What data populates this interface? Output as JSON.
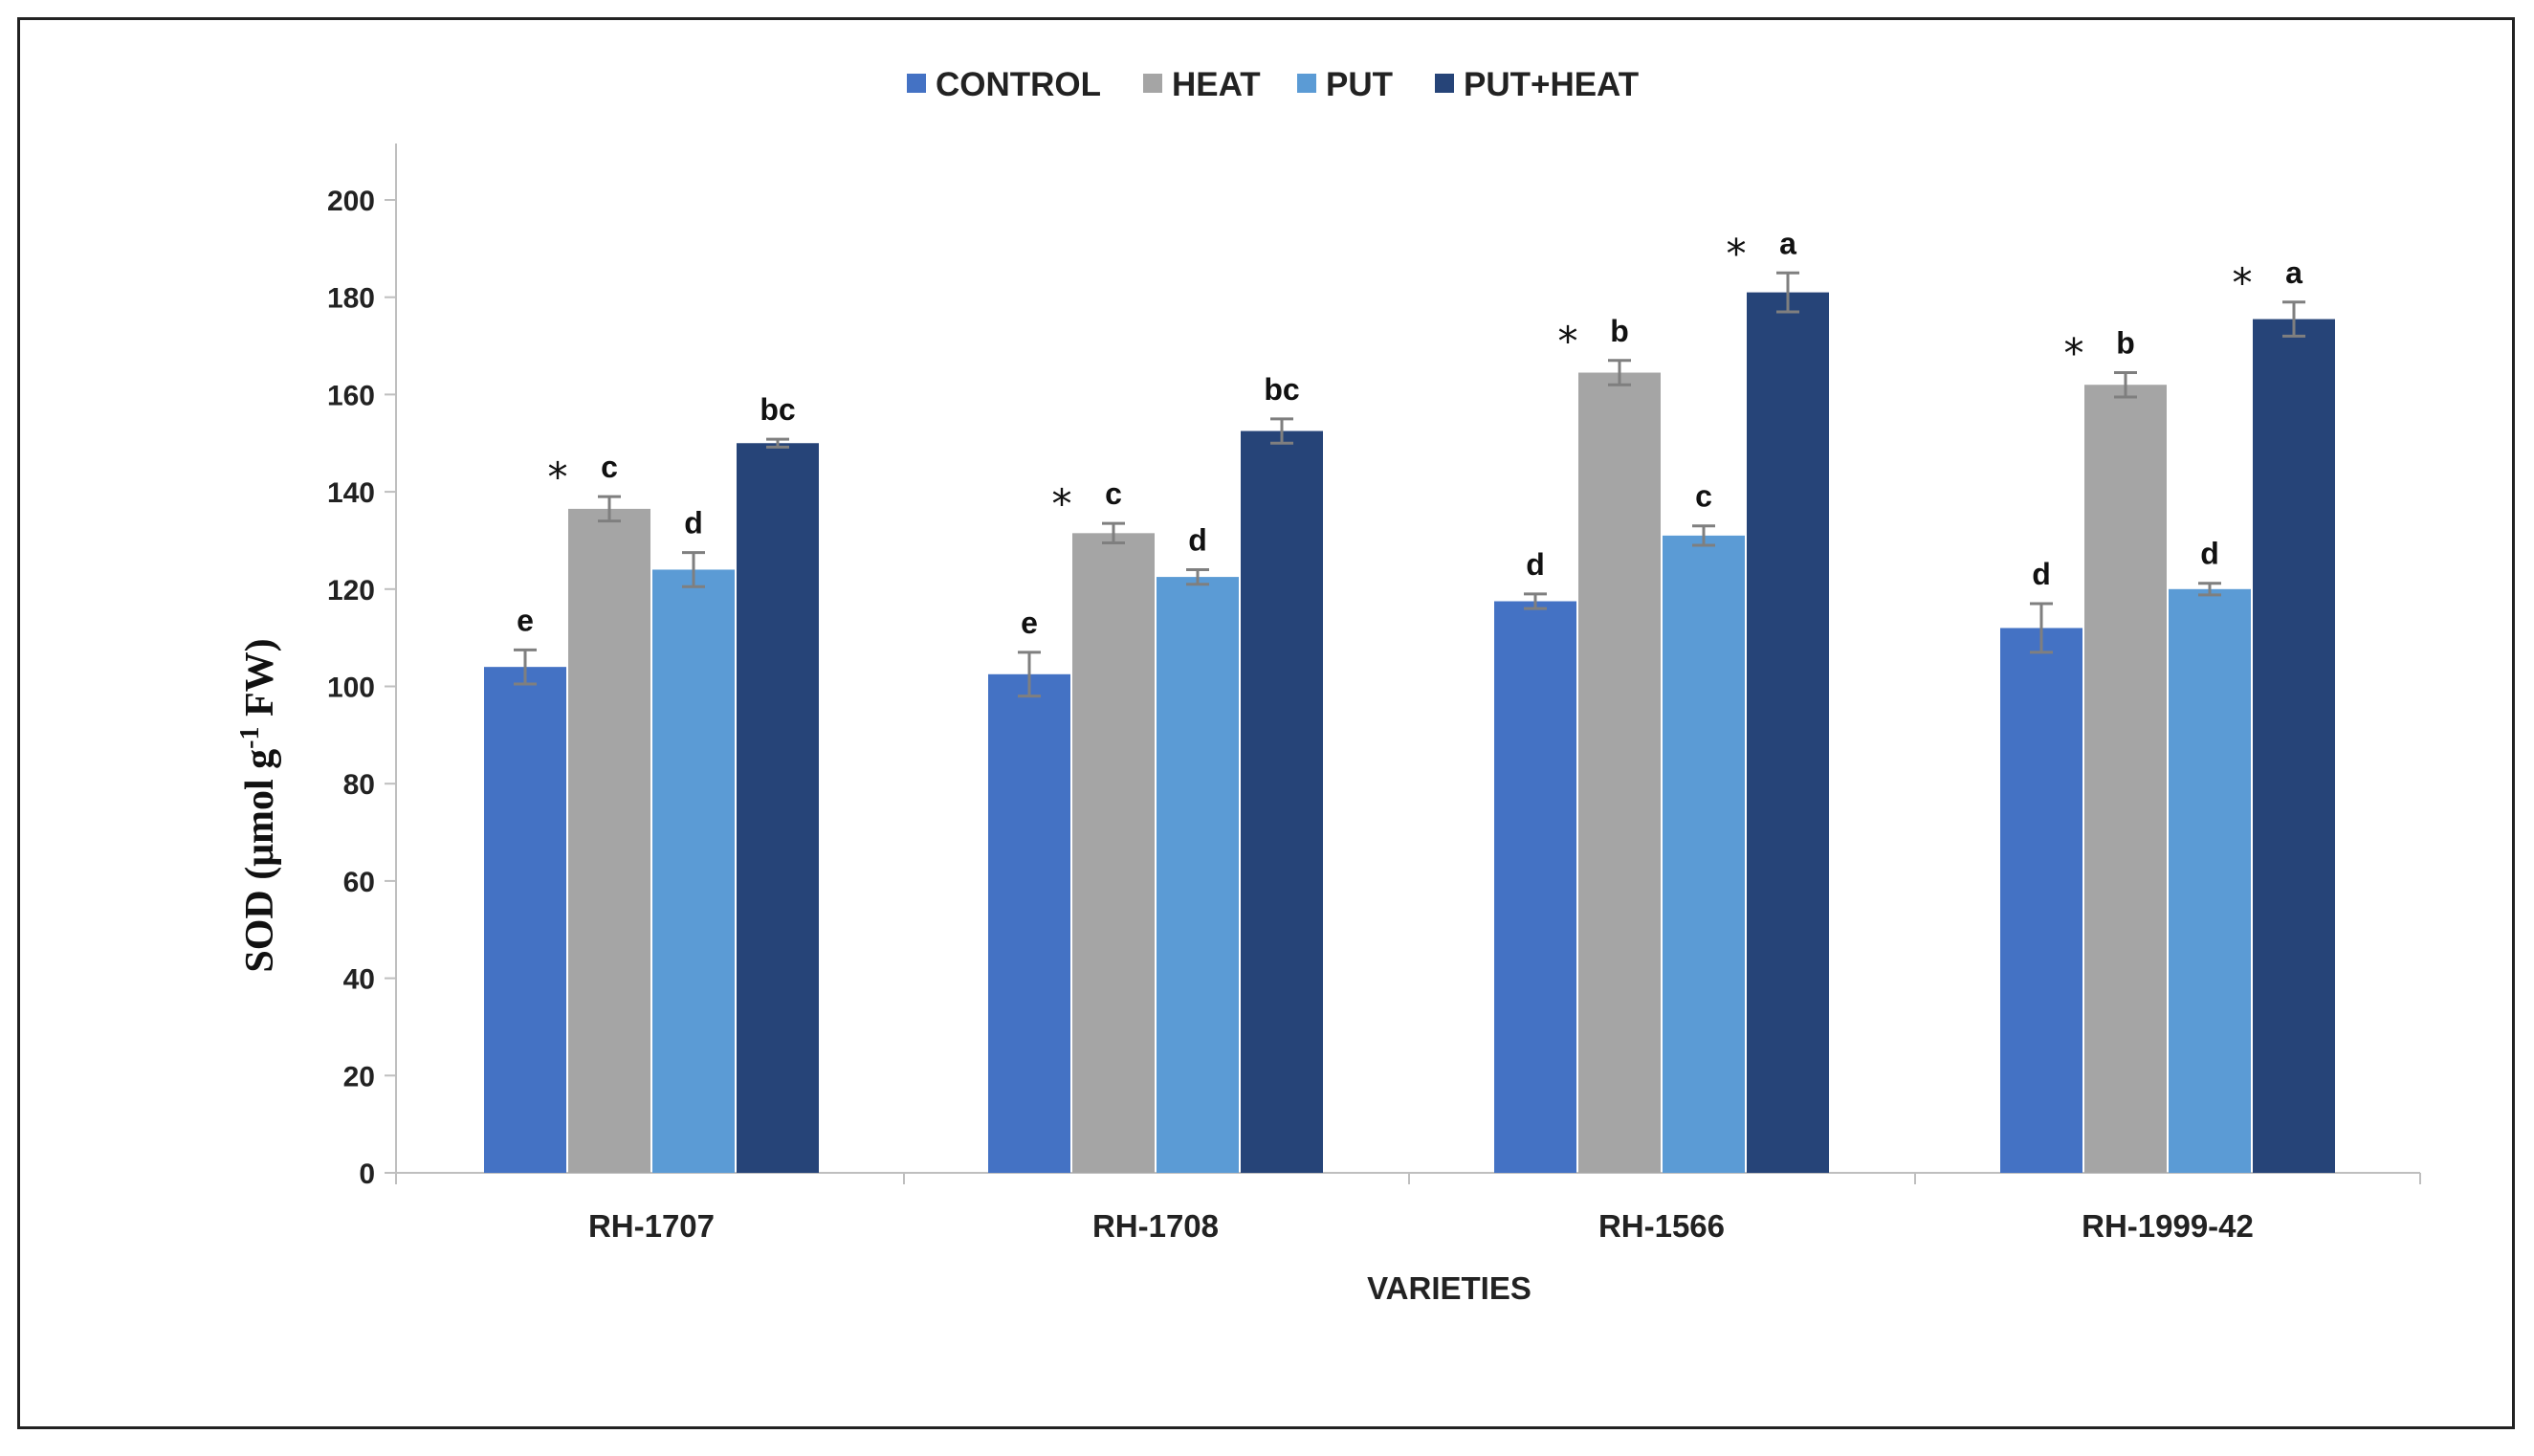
{
  "chart_data": {
    "type": "bar",
    "title": "",
    "xlabel": "VARIETIES",
    "ylabel": {
      "text": "SOD (μmol g",
      "superscript": "-1",
      "suffix": " FW)"
    },
    "ylim": [
      0,
      210
    ],
    "yticks": [
      0,
      20,
      40,
      60,
      80,
      100,
      120,
      140,
      160,
      180,
      200
    ],
    "categories": [
      "RH-1707",
      "RH-1708",
      "RH-1566",
      "RH-1999-42"
    ],
    "legend_position": "top",
    "series": [
      {
        "name": "CONTROL",
        "color": "#4472c4",
        "values": [
          104,
          102.5,
          117.5,
          112
        ],
        "errors": [
          3.5,
          4.5,
          1.5,
          5
        ],
        "letters": [
          "e",
          "e",
          "d",
          "d"
        ],
        "stars": [
          false,
          false,
          false,
          false
        ]
      },
      {
        "name": "HEAT",
        "color": "#a5a5a5",
        "values": [
          136.5,
          131.5,
          164.5,
          162
        ],
        "errors": [
          2.5,
          2,
          2.5,
          2.5
        ],
        "letters": [
          "c",
          "c",
          "b",
          "b"
        ],
        "stars": [
          true,
          true,
          true,
          true
        ]
      },
      {
        "name": "PUT",
        "color": "#5b9bd5",
        "values": [
          124,
          122.5,
          131,
          120
        ],
        "errors": [
          3.5,
          1.5,
          2,
          1.2
        ],
        "letters": [
          "d",
          "d",
          "c",
          "d"
        ],
        "stars": [
          false,
          false,
          false,
          false
        ]
      },
      {
        "name": "PUT+HEAT",
        "color": "#264478",
        "values": [
          150,
          152.5,
          181,
          175.5
        ],
        "errors": [
          0.8,
          2.5,
          4,
          3.5
        ],
        "letters": [
          "bc",
          "bc",
          "a",
          "a"
        ],
        "stars": [
          false,
          false,
          true,
          true
        ]
      }
    ],
    "star_symbol": "*",
    "axis_color": "#bfbfbf",
    "error_bar_color": "#7f7f7f"
  }
}
